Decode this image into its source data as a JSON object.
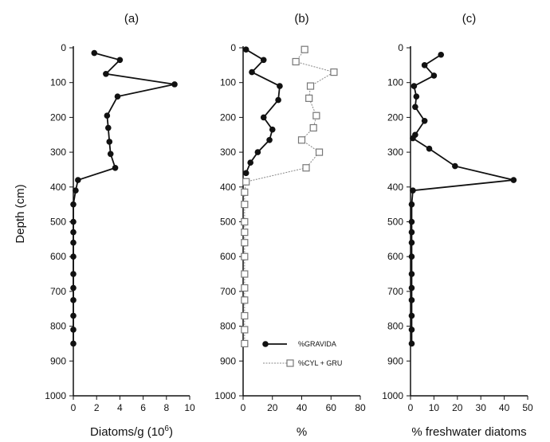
{
  "chart_data": [
    {
      "panel": "(a)",
      "type": "line",
      "xlabel": "Diatoms/g (10",
      "xlabel_sup": "6",
      "xlabel_end": ")",
      "ylabel": "Depth (cm)",
      "xlim": [
        0,
        10
      ],
      "ylim": [
        1000,
        0
      ],
      "x_ticks": [
        0,
        2,
        4,
        6,
        8,
        10
      ],
      "y_ticks": [
        0,
        100,
        200,
        300,
        400,
        500,
        600,
        700,
        800,
        900,
        1000
      ],
      "series": [
        {
          "style": "filled-circle",
          "points": [
            [
              1.8,
              15
            ],
            [
              4,
              35
            ],
            [
              2.8,
              75
            ],
            [
              8.7,
              105
            ],
            [
              3.8,
              140
            ],
            [
              2.9,
              195
            ],
            [
              3.0,
              230
            ],
            [
              3.1,
              270
            ],
            [
              3.2,
              305
            ],
            [
              3.6,
              345
            ],
            [
              0.4,
              380
            ],
            [
              0.2,
              410
            ],
            [
              0,
              450
            ],
            [
              0,
              500
            ],
            [
              0,
              530
            ],
            [
              0,
              560
            ],
            [
              0,
              600
            ],
            [
              0,
              650
            ],
            [
              0,
              690
            ],
            [
              0,
              725
            ],
            [
              0,
              770
            ],
            [
              0,
              810
            ],
            [
              0,
              850
            ]
          ]
        }
      ]
    },
    {
      "panel": "(b)",
      "type": "line",
      "xlabel": "%",
      "ylabel": "",
      "xlim": [
        0,
        80
      ],
      "ylim": [
        1000,
        0
      ],
      "x_ticks": [
        0,
        20,
        40,
        60,
        80
      ],
      "y_ticks": [
        0,
        100,
        200,
        300,
        400,
        500,
        600,
        700,
        800,
        900,
        1000
      ],
      "series": [
        {
          "name": "%GRAVIDA",
          "style": "filled-circle",
          "points": [
            [
              2,
              5
            ],
            [
              14,
              35
            ],
            [
              6,
              70
            ],
            [
              25,
              110
            ],
            [
              24,
              150
            ],
            [
              14,
              200
            ],
            [
              20,
              235
            ],
            [
              18,
              265
            ],
            [
              10,
              300
            ],
            [
              5,
              330
            ],
            [
              2,
              360
            ]
          ]
        },
        {
          "name": "%CYL + GRU",
          "style": "open-square",
          "points": [
            [
              42,
              5
            ],
            [
              36,
              40
            ],
            [
              62,
              70
            ],
            [
              46,
              110
            ],
            [
              45,
              145
            ],
            [
              50,
              195
            ],
            [
              48,
              230
            ],
            [
              40,
              265
            ],
            [
              52,
              300
            ],
            [
              43,
              345
            ],
            [
              2,
              385
            ],
            [
              1,
              415
            ],
            [
              1,
              450
            ],
            [
              1,
              500
            ],
            [
              1,
              530
            ],
            [
              1,
              560
            ],
            [
              1,
              600
            ],
            [
              1,
              650
            ],
            [
              1,
              690
            ],
            [
              1,
              725
            ],
            [
              1,
              770
            ],
            [
              1,
              810
            ],
            [
              1,
              850
            ]
          ]
        }
      ]
    },
    {
      "panel": "(c)",
      "type": "line",
      "xlabel": "% freshwater diatoms",
      "ylabel": "",
      "xlim": [
        0,
        50
      ],
      "ylim": [
        1000,
        0
      ],
      "x_ticks": [
        0,
        10,
        20,
        30,
        40,
        50
      ],
      "y_ticks": [
        0,
        100,
        200,
        300,
        400,
        500,
        600,
        700,
        800,
        900,
        1000
      ],
      "series": [
        {
          "style": "filled-circle",
          "points": [
            [
              13,
              20
            ],
            [
              6,
              50
            ],
            [
              10,
              80
            ],
            [
              1.5,
              110
            ],
            [
              2.5,
              140
            ],
            [
              2,
              170
            ],
            [
              6,
              210
            ],
            [
              2,
              250
            ],
            [
              1,
              260
            ],
            [
              8,
              290
            ],
            [
              19,
              340
            ],
            [
              44,
              380
            ],
            [
              1,
              410
            ],
            [
              0.5,
              450
            ],
            [
              0.5,
              500
            ],
            [
              0.5,
              530
            ],
            [
              0.5,
              560
            ],
            [
              0.5,
              600
            ],
            [
              0.5,
              650
            ],
            [
              0.5,
              690
            ],
            [
              0.5,
              725
            ],
            [
              0.5,
              770
            ],
            [
              0.5,
              810
            ],
            [
              0.5,
              850
            ]
          ]
        }
      ]
    }
  ]
}
